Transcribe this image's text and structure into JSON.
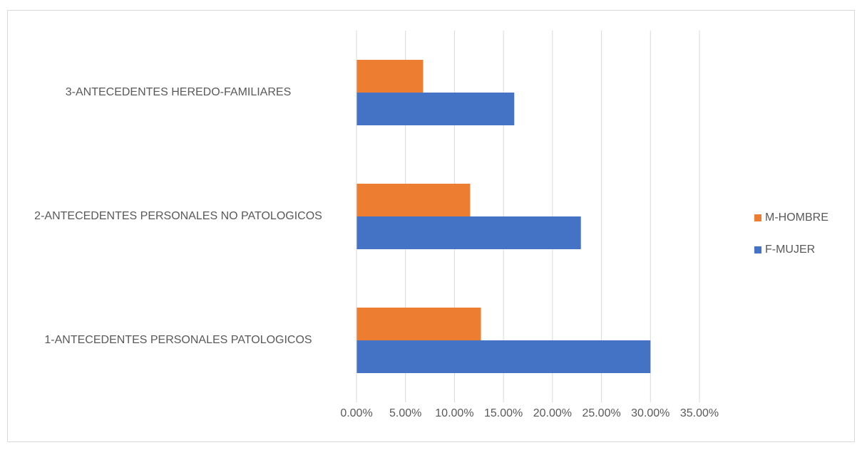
{
  "chart_data": {
    "type": "hbar",
    "categories": [
      "1-ANTECEDENTES PERSONALES PATOLOGICOS",
      "2-ANTECEDENTES PERSONALES NO PATOLOGICOS",
      "3-ANTECEDENTES HEREDO-FAMILIARES"
    ],
    "series": [
      {
        "name": "M-HOMBRE",
        "color": "#ed7d31",
        "values": [
          12.7,
          11.6,
          6.8
        ]
      },
      {
        "name": "F-MUJER",
        "color": "#4472c4",
        "values": [
          30,
          22.9,
          16.1
        ]
      }
    ],
    "xlim": [
      0,
      35
    ],
    "xticks": [
      {
        "value": 0,
        "label": "0.00%"
      },
      {
        "value": 5,
        "label": "5.00%"
      },
      {
        "value": 10,
        "label": "10.00%"
      },
      {
        "value": 15,
        "label": "15.00%"
      },
      {
        "value": 20,
        "label": "20.00%"
      },
      {
        "value": 25,
        "label": "25.00%"
      },
      {
        "value": 30,
        "label": "30.00%"
      },
      {
        "value": 35,
        "label": "35.00%"
      }
    ],
    "grid": true,
    "legend": "right"
  }
}
